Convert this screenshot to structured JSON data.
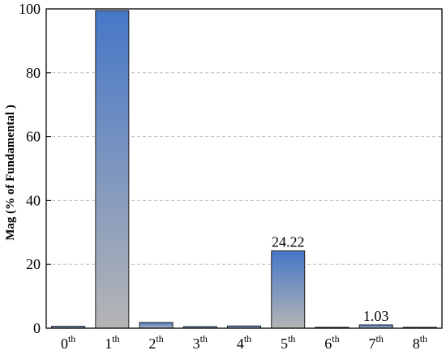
{
  "chart_data": {
    "type": "bar",
    "categories": [
      {
        "base": "0",
        "sup": "th"
      },
      {
        "base": "1",
        "sup": "th"
      },
      {
        "base": "2",
        "sup": "th"
      },
      {
        "base": "3",
        "sup": "th"
      },
      {
        "base": "4",
        "sup": "th"
      },
      {
        "base": "5",
        "sup": "th"
      },
      {
        "base": "6",
        "sup": "th"
      },
      {
        "base": "7",
        "sup": "th"
      },
      {
        "base": "8",
        "sup": "th"
      }
    ],
    "values": [
      0.6,
      99.5,
      1.8,
      0.5,
      0.7,
      24.22,
      0.3,
      1.03,
      0.3
    ],
    "data_labels": [
      "",
      "",
      "",
      "",
      "",
      "24.22",
      "",
      "1.03",
      ""
    ],
    "ylabel": "Mag (% of Fundamental )",
    "ylim": [
      0,
      100
    ],
    "yticks": [
      0,
      20,
      40,
      60,
      80,
      100
    ],
    "grid": "horizontal dashed",
    "colors": {
      "bar_top": "#4677c8",
      "bar_bottom": "#b5b5b5",
      "bar_edge": "#222222",
      "grid": "#bdbdbd"
    }
  }
}
